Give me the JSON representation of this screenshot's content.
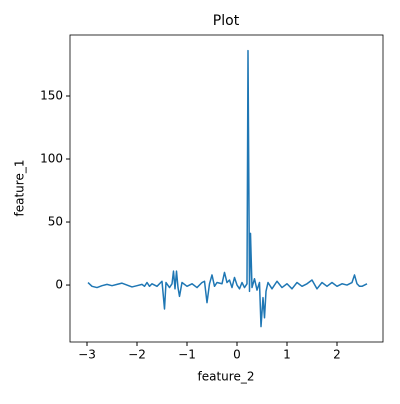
{
  "chart_data": {
    "type": "line",
    "title": "Plot",
    "x_label": "feature_2",
    "y_label": "feature_1",
    "series": [
      {
        "name": "feature_1",
        "color": "#1f77b4",
        "x": [
          -2.98,
          -2.9,
          -2.8,
          -2.7,
          -2.6,
          -2.5,
          -2.4,
          -2.3,
          -2.2,
          -2.1,
          -2.0,
          -1.9,
          -1.85,
          -1.8,
          -1.75,
          -1.7,
          -1.6,
          -1.5,
          -1.45,
          -1.42,
          -1.35,
          -1.3,
          -1.27,
          -1.24,
          -1.21,
          -1.18,
          -1.15,
          -1.1,
          -1.0,
          -0.9,
          -0.8,
          -0.7,
          -0.65,
          -0.6,
          -0.55,
          -0.5,
          -0.45,
          -0.4,
          -0.3,
          -0.25,
          -0.2,
          -0.15,
          -0.1,
          -0.05,
          0.0,
          0.05,
          0.1,
          0.15,
          0.2,
          0.22,
          0.25,
          0.27,
          0.3,
          0.35,
          0.4,
          0.45,
          0.48,
          0.52,
          0.55,
          0.58,
          0.62,
          0.7,
          0.8,
          0.9,
          1.0,
          1.1,
          1.2,
          1.3,
          1.4,
          1.5,
          1.6,
          1.7,
          1.8,
          1.9,
          2.0,
          2.1,
          2.2,
          2.3,
          2.35,
          2.4,
          2.45,
          2.5,
          2.6
        ],
        "values": [
          2,
          -1,
          -2,
          -0.5,
          0.5,
          -0.5,
          0.5,
          1.5,
          0,
          -1.5,
          -0.5,
          0.5,
          -1,
          2,
          -1,
          1,
          -1,
          3,
          -19,
          2,
          -2,
          1,
          11,
          -3,
          11,
          -2,
          -9,
          2,
          -1,
          1,
          -2,
          2,
          3,
          -14,
          1,
          8,
          -1,
          2,
          1,
          10,
          2,
          4,
          -2,
          6,
          0,
          -3,
          2,
          -2,
          1,
          186,
          -5,
          41,
          -2,
          5,
          -4,
          2,
          -33,
          -10,
          -26,
          -5,
          2,
          -3,
          3,
          -2,
          1,
          -3,
          2,
          -1,
          1,
          4,
          -3,
          2,
          -1,
          2,
          -1,
          1,
          0,
          2,
          8,
          1,
          -1,
          -1,
          1
        ]
      }
    ],
    "xlim": [
      -3.34,
      2.92
    ],
    "ylim": [
      -45.2,
      198.4
    ],
    "xticks": [
      {
        "value": -3,
        "label": "−3"
      },
      {
        "value": -2,
        "label": "−2"
      },
      {
        "value": -1,
        "label": "−1"
      },
      0,
      1,
      2
    ],
    "yticks": [
      0,
      50,
      100,
      150
    ]
  }
}
